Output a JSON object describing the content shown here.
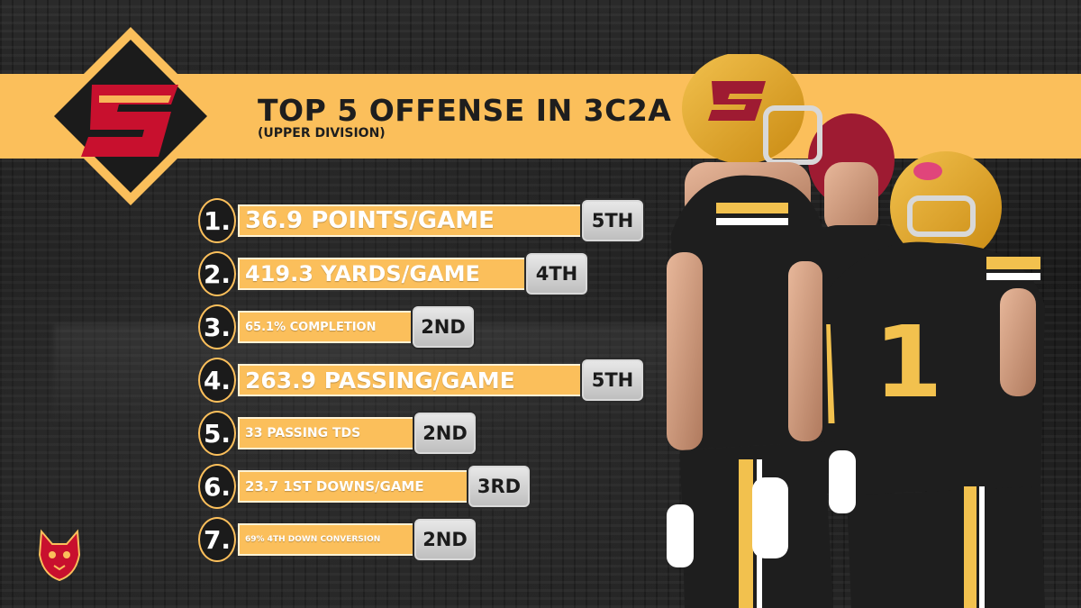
{
  "header": {
    "title": "TOP 5 OFFENSE IN 3C2A",
    "subtitle": "(UPPER DIVISION)"
  },
  "logo": {
    "letter": "S",
    "icon": "school-s-logo-icon"
  },
  "stats": [
    {
      "number": "1.",
      "label": "36.9 POINTS/GAME",
      "rank": "5TH"
    },
    {
      "number": "2.",
      "label": "419.3 YARDS/GAME",
      "rank": "4TH"
    },
    {
      "number": "3.",
      "label": "65.1% COMPLETION",
      "rank": "2ND"
    },
    {
      "number": "4.",
      "label": "263.9 PASSING/GAME",
      "rank": "5TH"
    },
    {
      "number": "5.",
      "label": "33 PASSING TDS",
      "rank": "2ND"
    },
    {
      "number": "6.",
      "label": "23.7 1ST DOWNS/GAME",
      "rank": "3RD"
    },
    {
      "number": "7.",
      "label": "69% 4TH DOWN CONVERSION",
      "rank": "2ND"
    }
  ],
  "players": {
    "jersey_number": "1",
    "helmet_letter": "S"
  },
  "colors": {
    "accent_gold": "#fbbf5b",
    "crimson": "#c8102e",
    "dark": "#1b1b1b",
    "rank_silver": "#d0d0d0"
  },
  "mascot": {
    "icon": "bobcat-mascot-icon"
  }
}
